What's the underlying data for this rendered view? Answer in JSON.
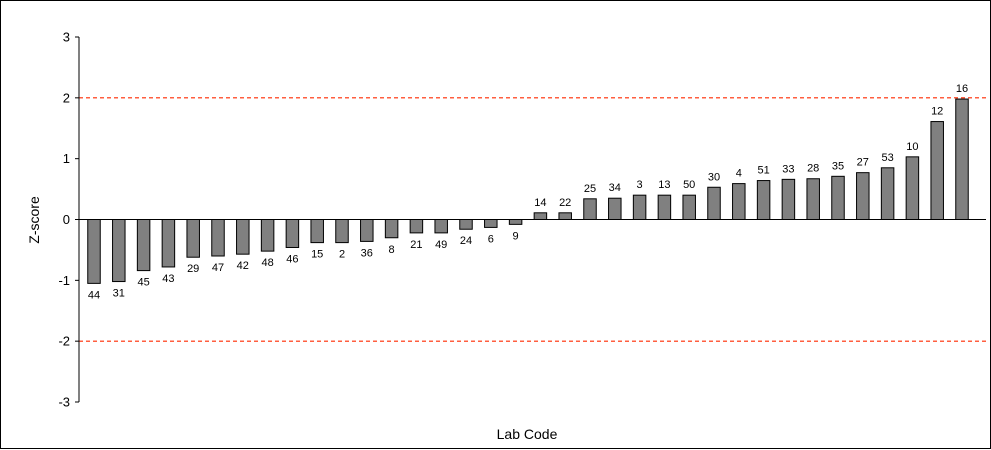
{
  "chart_data": {
    "type": "bar",
    "title": "",
    "xlabel": "Lab Code",
    "ylabel": "Z-score",
    "ylim": [
      -3,
      3
    ],
    "yticks": [
      "3",
      "2",
      "1",
      "0",
      "-1",
      "-2",
      "-3"
    ],
    "grid": false,
    "legend": "none",
    "reference_lines": [
      2,
      -2
    ],
    "categories": [
      "44",
      "31",
      "45",
      "43",
      "29",
      "47",
      "42",
      "48",
      "46",
      "15",
      "2",
      "36",
      "8",
      "21",
      "49",
      "24",
      "6",
      "9",
      "14",
      "22",
      "25",
      "34",
      "3",
      "13",
      "50",
      "30",
      "4",
      "51",
      "33",
      "28",
      "35",
      "27",
      "53",
      "10",
      "12",
      "16"
    ],
    "values": [
      -1.05,
      -1.02,
      -0.84,
      -0.78,
      -0.62,
      -0.6,
      -0.57,
      -0.52,
      -0.46,
      -0.38,
      -0.38,
      -0.36,
      -0.3,
      -0.22,
      -0.22,
      -0.16,
      -0.13,
      -0.08,
      0.11,
      0.11,
      0.34,
      0.35,
      0.4,
      0.4,
      0.4,
      0.53,
      0.59,
      0.64,
      0.66,
      0.67,
      0.71,
      0.77,
      0.85,
      1.03,
      1.61,
      1.98
    ],
    "colors": {
      "bar_fill": "#808080",
      "bar_stroke": "#000000",
      "reference_line": "#ff2a00",
      "axis": "#000000"
    }
  }
}
